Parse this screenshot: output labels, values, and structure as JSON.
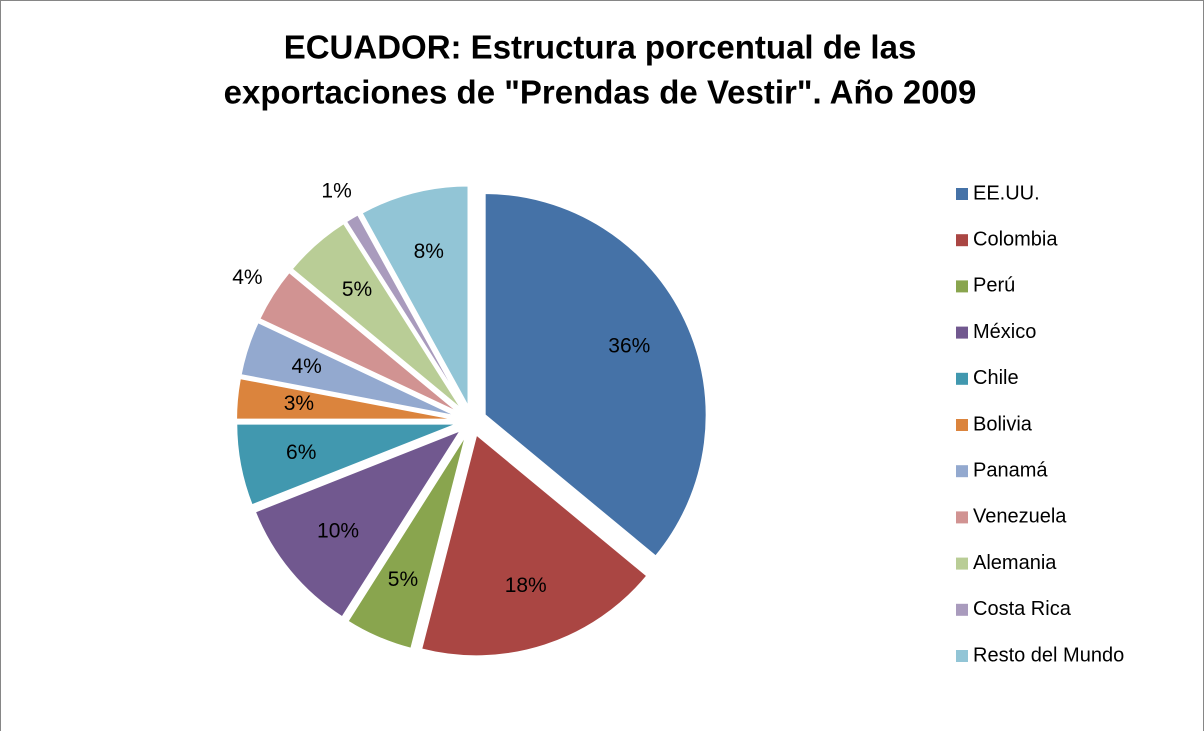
{
  "chart_data": {
    "type": "pie",
    "title": [
      "ECUADOR: Estructura porcentual de las",
      "exportaciones de \"Prendas de Vestir\".  Año 2009"
    ],
    "categories": [
      "EE.UU.",
      "Colombia",
      "Perú",
      "México",
      "Chile",
      "Bolivia",
      "Panamá",
      "Venezuela",
      "Alemania",
      "Costa Rica",
      "Resto del Mundo"
    ],
    "values": [
      36,
      18,
      5,
      10,
      6,
      3,
      4,
      4,
      5,
      1,
      8
    ],
    "value_labels": [
      "36%",
      "18%",
      "5%",
      "10%",
      "6%",
      "3%",
      "4%",
      "4%",
      "5%",
      "1%",
      "8%"
    ],
    "colors": [
      "#4572a7",
      "#aa4643",
      "#89a54e",
      "#71588f",
      "#4198af",
      "#db843d",
      "#93a9cf",
      "#d19392",
      "#b9cd96",
      "#a99bbd",
      "#92c5d6"
    ],
    "legend": "right"
  }
}
